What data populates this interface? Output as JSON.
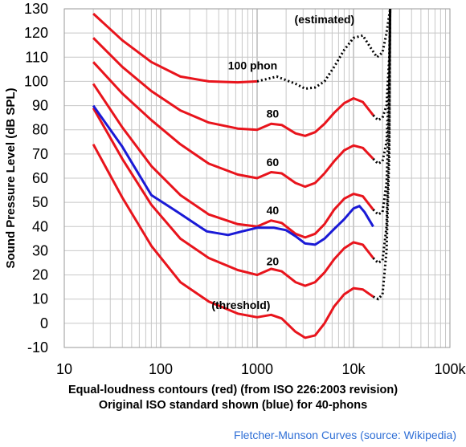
{
  "chart_data": {
    "type": "line",
    "xlabel_line1": "Equal-loudness contours (red) (from ISO 226:2003 revision)",
    "xlabel_line2": "Original ISO standard shown (blue) for 40-phons",
    "ylabel": "Sound Pressure Level (dB SPL)",
    "credit": "Fletcher-Munson Curves (source: Wikipedia)",
    "x_scale": "log",
    "xlim": [
      10,
      100000
    ],
    "ylim": [
      -10,
      130
    ],
    "grid": true,
    "x_ticks": [
      {
        "value": 10,
        "label": "10"
      },
      {
        "value": 100,
        "label": "100"
      },
      {
        "value": 1000,
        "label": "1000"
      },
      {
        "value": 10000,
        "label": "10k"
      },
      {
        "value": 100000,
        "label": "100k"
      }
    ],
    "y_ticks": [
      -10,
      0,
      10,
      20,
      30,
      40,
      50,
      60,
      70,
      80,
      90,
      100,
      110,
      120,
      130
    ],
    "colors": {
      "iso226": "#e8141c",
      "original": "#1a1ad6",
      "estimated": "#000000"
    },
    "annotations": [
      {
        "text": "(estimated)",
        "x": 5000,
        "y": 124
      },
      {
        "text": "100 phon",
        "x": 900,
        "y": 105
      },
      {
        "text": "80",
        "x": 1450,
        "y": 85
      },
      {
        "text": "60",
        "x": 1450,
        "y": 65
      },
      {
        "text": "40",
        "x": 1450,
        "y": 45
      },
      {
        "text": "20",
        "x": 1450,
        "y": 24
      },
      {
        "text": "(threshold)",
        "x": 680,
        "y": 6
      }
    ],
    "series": [
      {
        "phon": 100,
        "values": [
          [
            20,
            128
          ],
          [
            40,
            117
          ],
          [
            80,
            108
          ],
          [
            160,
            102
          ],
          [
            315,
            100
          ],
          [
            630,
            99.6
          ],
          [
            1000,
            100
          ]
        ],
        "estimated": [
          [
            1000,
            100
          ],
          [
            1600,
            102
          ],
          [
            2500,
            99
          ],
          [
            3150,
            97
          ],
          [
            4000,
            97.5
          ],
          [
            5000,
            100
          ],
          [
            6300,
            106
          ],
          [
            8000,
            113
          ],
          [
            10000,
            118
          ],
          [
            12500,
            119
          ],
          [
            15000,
            114
          ],
          [
            17500,
            110
          ],
          [
            20000,
            112
          ],
          [
            22000,
            120
          ],
          [
            24000,
            130
          ]
        ]
      },
      {
        "phon": 80,
        "values": [
          [
            20,
            118
          ],
          [
            40,
            106
          ],
          [
            80,
            96
          ],
          [
            160,
            88
          ],
          [
            315,
            83
          ],
          [
            630,
            80.5
          ],
          [
            1000,
            80
          ],
          [
            1400,
            82.5
          ],
          [
            1800,
            82
          ],
          [
            2500,
            78.5
          ],
          [
            3150,
            77.5
          ],
          [
            4000,
            79
          ],
          [
            5000,
            82.5
          ],
          [
            6300,
            87
          ],
          [
            8000,
            91
          ],
          [
            10000,
            93
          ],
          [
            12500,
            91.5
          ],
          [
            16000,
            86
          ]
        ],
        "estimated": [
          [
            16000,
            86
          ],
          [
            18000,
            84
          ],
          [
            20000,
            85
          ],
          [
            22000,
            90
          ],
          [
            23500,
            110
          ],
          [
            24000,
            130
          ]
        ]
      },
      {
        "phon": 60,
        "values": [
          [
            20,
            108
          ],
          [
            40,
            95
          ],
          [
            80,
            84
          ],
          [
            160,
            74
          ],
          [
            315,
            66
          ],
          [
            630,
            61.5
          ],
          [
            1000,
            60
          ],
          [
            1400,
            62.5
          ],
          [
            1800,
            62
          ],
          [
            2500,
            58
          ],
          [
            3150,
            56.5
          ],
          [
            4000,
            58
          ],
          [
            5000,
            62
          ],
          [
            6300,
            67
          ],
          [
            8000,
            71.5
          ],
          [
            10000,
            73.5
          ],
          [
            12500,
            72.5
          ],
          [
            16000,
            68
          ]
        ],
        "estimated": [
          [
            16000,
            68
          ],
          [
            18000,
            66
          ],
          [
            20000,
            67
          ],
          [
            22000,
            75
          ],
          [
            23500,
            100
          ],
          [
            24000,
            130
          ]
        ]
      },
      {
        "phon": 40,
        "values": [
          [
            20,
            99
          ],
          [
            40,
            81
          ],
          [
            80,
            65
          ],
          [
            160,
            53
          ],
          [
            315,
            45
          ],
          [
            630,
            41
          ],
          [
            1000,
            40
          ],
          [
            1400,
            42.5
          ],
          [
            1800,
            41.5
          ],
          [
            2500,
            37
          ],
          [
            3150,
            35.5
          ],
          [
            4000,
            37
          ],
          [
            5000,
            41
          ],
          [
            6300,
            47
          ],
          [
            8000,
            51.5
          ],
          [
            10000,
            53.5
          ],
          [
            12500,
            52.5
          ],
          [
            16000,
            47
          ]
        ],
        "estimated": [
          [
            16000,
            47
          ],
          [
            18000,
            45
          ],
          [
            20000,
            46
          ],
          [
            22000,
            58
          ],
          [
            23500,
            90
          ],
          [
            24000,
            130
          ]
        ]
      },
      {
        "phon": 20,
        "values": [
          [
            20,
            89
          ],
          [
            40,
            68
          ],
          [
            80,
            49
          ],
          [
            160,
            35
          ],
          [
            315,
            27
          ],
          [
            630,
            22
          ],
          [
            1000,
            20
          ],
          [
            1400,
            22.5
          ],
          [
            1800,
            21.5
          ],
          [
            2500,
            17
          ],
          [
            3150,
            15.5
          ],
          [
            4000,
            17
          ],
          [
            5000,
            21
          ],
          [
            6300,
            26.5
          ],
          [
            8000,
            31
          ],
          [
            10000,
            33.5
          ],
          [
            12500,
            32.5
          ],
          [
            16000,
            27
          ]
        ],
        "estimated": [
          [
            16000,
            27
          ],
          [
            18000,
            25
          ],
          [
            20000,
            26
          ],
          [
            22000,
            40
          ],
          [
            23500,
            80
          ],
          [
            24000,
            130
          ]
        ]
      },
      {
        "phon": 0,
        "values": [
          [
            20,
            74
          ],
          [
            40,
            52
          ],
          [
            80,
            32
          ],
          [
            160,
            17
          ],
          [
            315,
            9
          ],
          [
            630,
            4
          ],
          [
            1000,
            2.5
          ],
          [
            1400,
            3.5
          ],
          [
            1800,
            2
          ],
          [
            2500,
            -3.5
          ],
          [
            3150,
            -6
          ],
          [
            4000,
            -5
          ],
          [
            5000,
            0
          ],
          [
            6300,
            7
          ],
          [
            8000,
            12
          ],
          [
            10000,
            14.5
          ],
          [
            12500,
            14
          ],
          [
            16000,
            11
          ]
        ],
        "estimated": [
          [
            16000,
            11
          ],
          [
            18000,
            10
          ],
          [
            20000,
            12
          ],
          [
            22000,
            30
          ],
          [
            23500,
            70
          ],
          [
            24000,
            130
          ]
        ]
      },
      {
        "phon": 40,
        "original": true,
        "values": [
          [
            20,
            90
          ],
          [
            40,
            73
          ],
          [
            80,
            53
          ],
          [
            150,
            46
          ],
          [
            300,
            38
          ],
          [
            500,
            36.5
          ],
          [
            700,
            38
          ],
          [
            1000,
            39.5
          ],
          [
            1500,
            39.5
          ],
          [
            2000,
            38.5
          ],
          [
            2500,
            36
          ],
          [
            3150,
            33
          ],
          [
            4000,
            32.5
          ],
          [
            5000,
            35
          ],
          [
            6300,
            39
          ],
          [
            8000,
            43
          ],
          [
            10000,
            47.5
          ],
          [
            11500,
            48.5
          ],
          [
            13000,
            46
          ],
          [
            16000,
            40
          ]
        ]
      }
    ]
  }
}
